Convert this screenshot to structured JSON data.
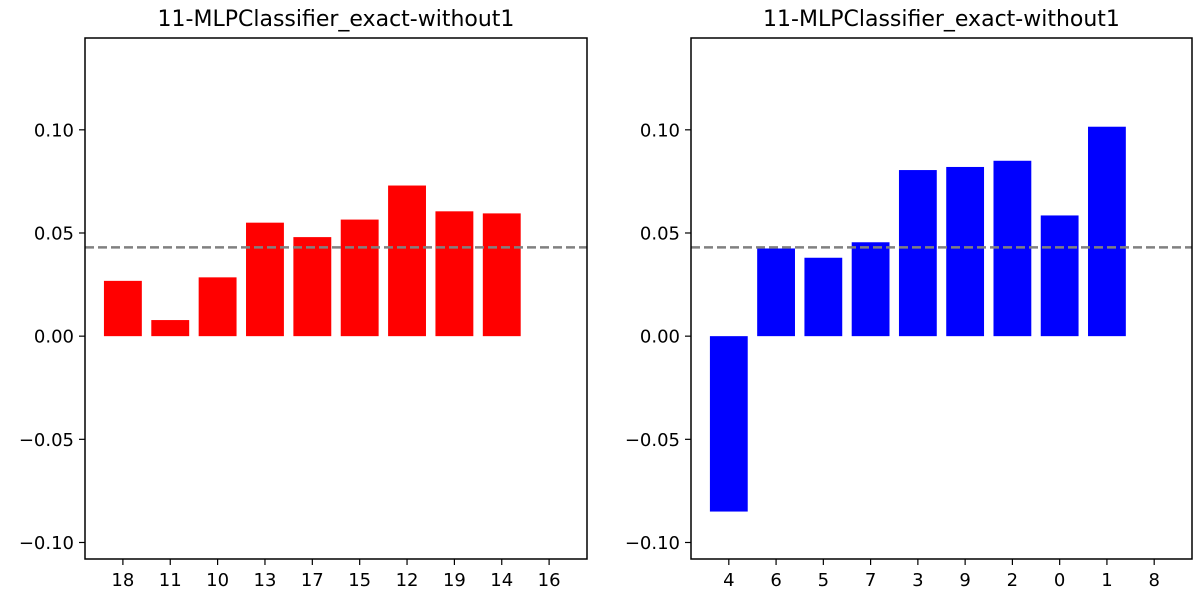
{
  "chart_data": [
    {
      "type": "bar",
      "title": "11-MLPClassifier_exact-without1",
      "xlabel": "",
      "ylabel": "",
      "categories": [
        "18",
        "11",
        "10",
        "13",
        "17",
        "15",
        "12",
        "19",
        "14",
        "16"
      ],
      "values": [
        0.0268,
        0.0078,
        0.0285,
        0.055,
        0.048,
        0.0565,
        0.073,
        0.0605,
        0.0595,
        null
      ],
      "bar_color": "#ff0000",
      "reference_line": {
        "y": 0.043,
        "color": "#808080",
        "style": "dashed"
      },
      "ylim": [
        -0.108,
        0.1445
      ],
      "yticks": [
        -0.1,
        -0.05,
        0.0,
        0.05,
        0.1
      ],
      "ytick_labels": [
        "−0.10",
        "−0.05",
        "0.00",
        "0.05",
        "0.10"
      ],
      "grid": false,
      "legend": "none"
    },
    {
      "type": "bar",
      "title": "11-MLPClassifier_exact-without1",
      "xlabel": "",
      "ylabel": "",
      "categories": [
        "4",
        "6",
        "5",
        "7",
        "3",
        "9",
        "2",
        "0",
        "1",
        "8"
      ],
      "values": [
        -0.085,
        0.0425,
        0.038,
        0.0455,
        0.0805,
        0.082,
        0.085,
        0.0585,
        0.1015,
        null
      ],
      "bar_color": "#0000ff",
      "reference_line": {
        "y": 0.043,
        "color": "#808080",
        "style": "dashed"
      },
      "ylim": [
        -0.108,
        0.1445
      ],
      "yticks": [
        -0.1,
        -0.05,
        0.0,
        0.05,
        0.1
      ],
      "ytick_labels": [
        "−0.10",
        "−0.05",
        "0.00",
        "0.05",
        "0.10"
      ],
      "grid": false,
      "legend": "none"
    }
  ]
}
